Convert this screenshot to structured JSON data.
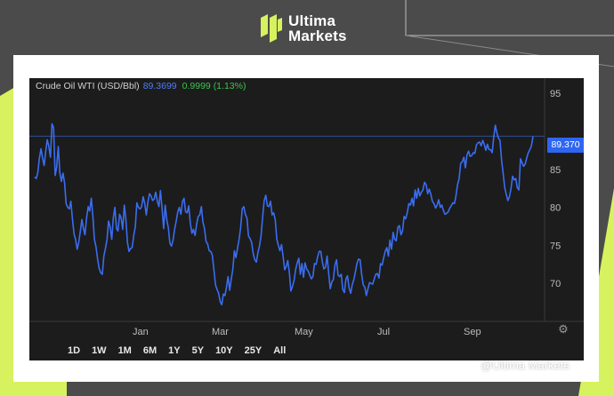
{
  "brand": {
    "line1": "Ultima",
    "line2": "Markets",
    "colors": {
      "lime": "#d6f25e",
      "dark_bg": "#4b4b4b"
    }
  },
  "chart_header": {
    "symbol": "Crude Oil WTI (USD/Bbl)",
    "last_price": "89.3699",
    "change": "0.9999 (1.13%)"
  },
  "price_tag": "89.370",
  "range_buttons": [
    "1D",
    "1W",
    "1M",
    "6M",
    "1Y",
    "5Y",
    "10Y",
    "25Y",
    "All"
  ],
  "watermark": "@Ultima Markets",
  "chart_data": {
    "type": "line",
    "title": "Crude Oil WTI (USD/Bbl)",
    "xlabel": "",
    "ylabel": "",
    "x_tick_labels": [
      "Jan",
      "Mar",
      "May",
      "Jul",
      "Sep"
    ],
    "y_ticks": [
      70,
      75,
      80,
      85,
      95
    ],
    "ylim": [
      65,
      97
    ],
    "grid": false,
    "reference_line": 89.37,
    "colors": {
      "line": "#3a6df0",
      "background": "#1c1c1c"
    },
    "series": [
      {
        "values": [
          84.0,
          83.8,
          84.6,
          86.5,
          87.7,
          86.5,
          85.5,
          87.4,
          88.9,
          88.0,
          86.6,
          91.0,
          90.5,
          84.2,
          85.3,
          88.0,
          84.5,
          83.4,
          84.5,
          83.2,
          80.5,
          80.0,
          79.8,
          80.8,
          78.5,
          76.5,
          75.8,
          74.5,
          75.4,
          76.8,
          78.4,
          77.2,
          76.4,
          78.6,
          80.1,
          79.5,
          81.2,
          78.8,
          75.8,
          74.8,
          73.2,
          72.0,
          71.4,
          71.2,
          73.6,
          74.6,
          75.8,
          78.2,
          77.4,
          75.8,
          78.6,
          80.0,
          77.2,
          76.9,
          79.1,
          78.6,
          77.1,
          80.3,
          78.4,
          75.4,
          74.2,
          74.6,
          74.7,
          76.3,
          77.5,
          80.6,
          80.0,
          79.8,
          80.1,
          81.4,
          80.5,
          79.0,
          80.7,
          81.8,
          81.5,
          80.9,
          81.1,
          82.0,
          80.8,
          80.1,
          82.2,
          79.9,
          77.2,
          80.3,
          78.4,
          77.3,
          75.3,
          74.9,
          75.7,
          77.1,
          78.2,
          79.4,
          80.0,
          79.1,
          80.8,
          81.2,
          79.4,
          79.3,
          80.2,
          77.9,
          76.6,
          77.1,
          76.3,
          77.8,
          78.8,
          79.0,
          80.1,
          78.1,
          77.2,
          75.5,
          75.2,
          74.3,
          74.2,
          73.7,
          71.8,
          69.8,
          69.2,
          68.7,
          67.6,
          67.2,
          68.6,
          68.4,
          69.5,
          70.9,
          69.1,
          70.5,
          71.8,
          74.3,
          73.4,
          74.6,
          75.8,
          77.3,
          79.8,
          80.1,
          79.1,
          78.6,
          76.2,
          75.9,
          75.4,
          73.9,
          73.1,
          72.8,
          74.1,
          74.9,
          76.3,
          78.8,
          80.9,
          81.6,
          80.2,
          80.1,
          80.8,
          79.0,
          79.3,
          78.4,
          75.8,
          75.0,
          74.3,
          75.1,
          73.6,
          71.8,
          72.2,
          73.0,
          71.4,
          69.0,
          69.6,
          70.4,
          71.8,
          72.7,
          73.3,
          71.2,
          72.6,
          70.8,
          72.7,
          71.9,
          71.6,
          71.1,
          70.6,
          70.9,
          72.6,
          72.5,
          73.5,
          74.2,
          74.2,
          72.8,
          71.9,
          72.1,
          73.6,
          71.4,
          69.3,
          70.2,
          70.5,
          72.4,
          73.1,
          71.1,
          70.9,
          71.2,
          69.2,
          68.8,
          70.6,
          71.0,
          69.4,
          68.7,
          69.8,
          70.5,
          71.5,
          72.6,
          73.2,
          73.1,
          71.2,
          69.8,
          69.5,
          68.4,
          69.3,
          70.1,
          70.0,
          69.9,
          70.6,
          71.2,
          71.3,
          70.7,
          72.6,
          72.4,
          73.4,
          74.2,
          74.7,
          73.6,
          75.7,
          74.5,
          76.7,
          75.8,
          75.6,
          77.4,
          77.6,
          76.4,
          76.9,
          78.8,
          78.5,
          79.3,
          80.5,
          80.3,
          81.2,
          80.2,
          82.3,
          81.2,
          82.5,
          81.5,
          82.0,
          82.3,
          83.3,
          83.0,
          81.8,
          82.4,
          81.7,
          80.8,
          80.5,
          79.9,
          80.3,
          81.0,
          80.0,
          80.3,
          79.6,
          79.1,
          79.2,
          79.4,
          79.9,
          80.2,
          80.6,
          80.5,
          81.5,
          83.0,
          83.8,
          85.8,
          86.0,
          86.6,
          85.2,
          86.9,
          87.4,
          86.7,
          86.8,
          87.2,
          87.1,
          88.2,
          88.5,
          88.6,
          88.1,
          88.8,
          88.3,
          87.5,
          88.3,
          87.6,
          87.6,
          87.2,
          89.2,
          90.8,
          89.8,
          89.1,
          88.8,
          86.2,
          84.5,
          82.6,
          81.7,
          80.9,
          81.4,
          82.5,
          84.1,
          83.6,
          83.8,
          82.6,
          82.3,
          86.4,
          85.9,
          85.4,
          85.7,
          86.5,
          87.2,
          87.6,
          88.1,
          89.3
        ]
      }
    ]
  }
}
